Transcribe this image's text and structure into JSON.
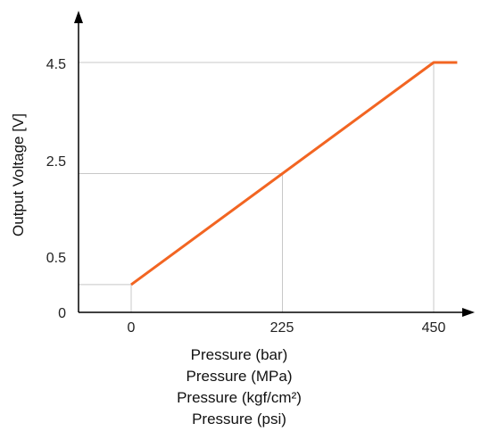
{
  "chart_data": {
    "type": "line",
    "xlabel": [
      "Pressure (bar)",
      "Pressure (MPa)",
      "Pressure (kgf/cm²)",
      "Pressure (psi)"
    ],
    "ylabel": "Output Voltage [V]",
    "x_ticks": [
      "0",
      "225",
      "450"
    ],
    "y_ticks": [
      "0",
      "0.5",
      "2.5",
      "4.5"
    ],
    "xlim": [
      -150,
      500
    ],
    "ylim": [
      0,
      5.3
    ],
    "grid": "reference lines at tick values",
    "series": [
      {
        "color": "#f26522",
        "x": [
          0,
          450,
          485
        ],
        "y": [
          0.5,
          4.5,
          4.5
        ]
      }
    ]
  }
}
